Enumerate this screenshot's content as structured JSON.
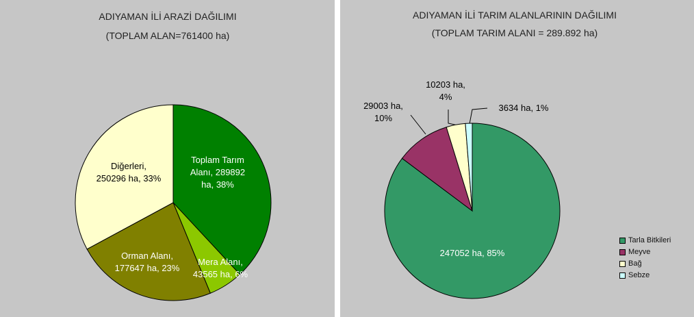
{
  "chart_data": [
    {
      "type": "pie",
      "title": "ADIYAMAN İLİ ARAZİ DAĞILIMI",
      "subtitle": "(TOPLAM ALAN=761400 ha)",
      "values": [
        289892,
        43565,
        177647,
        250296
      ],
      "value_labels": [
        "Toplam Tarım Alanı, 289892 ha, 38%",
        "Mera Alanı, 43565 ha, 6%",
        "Orman Alanı, 177647 ha, 23%",
        "Diğerleri, 250296 ha, 33%"
      ],
      "colors": [
        "#008000",
        "#8cc800",
        "#808000",
        "#ffffcc"
      ]
    },
    {
      "type": "pie",
      "title": "ADIYAMAN İLİ TARIM ALANLARININ DAĞILIMI",
      "subtitle": "(TOPLAM TARIM ALANI = 289.892 ha)",
      "categories": [
        "Tarla Bitkileri",
        "Meyve",
        "Bağ",
        "Sebze"
      ],
      "values": [
        247052,
        29003,
        10203,
        3634
      ],
      "value_labels": [
        "247052 ha, 85%",
        "29003 ha, 10%",
        "10203 ha, 4%",
        "3634 ha, 1%"
      ],
      "colors": [
        "#339966",
        "#993366",
        "#ffffcc",
        "#ccffff"
      ],
      "legend": "bottom-right"
    }
  ]
}
